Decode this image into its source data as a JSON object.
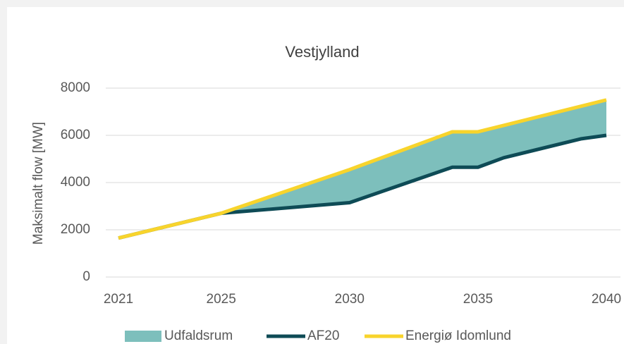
{
  "chart_data": {
    "type": "line",
    "title": "Vestjylland",
    "y_label": "Maksimalt flow [MW]",
    "x": [
      2021,
      2025,
      2030,
      2034,
      2035,
      2036,
      2039,
      2040
    ],
    "series": [
      {
        "name": "Udfaldsrum",
        "type": "area",
        "color": "#7dbfbc",
        "stacked_on": "AF20",
        "values": [
          0,
          0,
          1400,
          1500,
          1500,
          1370,
          1380,
          1500
        ]
      },
      {
        "name": "AF20",
        "type": "line",
        "color": "#0e4b56",
        "values": [
          1650,
          2700,
          3150,
          4650,
          4650,
          5050,
          5850,
          6000
        ]
      },
      {
        "name": "Energiø Idomlund",
        "type": "line",
        "color": "#f8d42c",
        "values": [
          1650,
          2700,
          4550,
          6150,
          6150,
          6420,
          7230,
          7500
        ]
      }
    ],
    "xlim": [
      2021,
      2040
    ],
    "xticks": [
      2021,
      2025,
      2030,
      2035,
      2040
    ],
    "ylim": [
      0,
      8000
    ],
    "yticks": [
      0,
      2000,
      4000,
      6000,
      8000
    ],
    "grid": true,
    "legend": "bottom"
  }
}
